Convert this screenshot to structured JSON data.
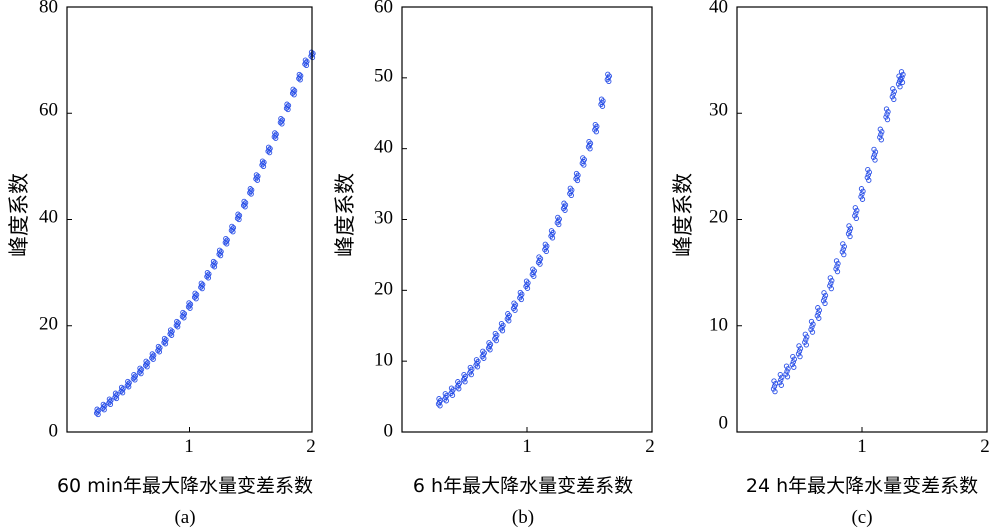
{
  "chart_data": [
    {
      "type": "scatter",
      "panel_label": "(a)",
      "xlabel": "60 min年最大降水量变差系数",
      "ylabel": "峰度系数",
      "xlim": [
        0,
        2
      ],
      "ylim": [
        0,
        80
      ],
      "xticks": [
        "1",
        "2"
      ],
      "yticks": [
        "0",
        "20",
        "40",
        "60",
        "80"
      ],
      "color": "#2a50e8",
      "x": [
        0.25,
        0.3,
        0.35,
        0.4,
        0.45,
        0.5,
        0.55,
        0.6,
        0.65,
        0.7,
        0.75,
        0.8,
        0.85,
        0.9,
        0.95,
        1.0,
        1.05,
        1.1,
        1.15,
        1.2,
        1.25,
        1.3,
        1.35,
        1.4,
        1.45,
        1.5,
        1.55,
        1.6,
        1.65,
        1.7,
        1.75,
        1.8,
        1.85,
        1.9,
        1.95,
        2.0
      ],
      "y": [
        3.8,
        4.7,
        5.7,
        6.8,
        7.9,
        9.0,
        10.3,
        11.5,
        12.8,
        14.2,
        15.6,
        17.1,
        18.7,
        20.3,
        22.0,
        23.8,
        25.6,
        27.5,
        29.5,
        31.6,
        33.7,
        35.9,
        38.2,
        40.5,
        42.9,
        45.3,
        47.9,
        50.5,
        53.1,
        55.8,
        58.5,
        61.2,
        64.0,
        66.8,
        69.5,
        71.0
      ]
    },
    {
      "type": "scatter",
      "panel_label": "(b)",
      "xlabel": "6 h年最大降水量变差系数",
      "ylabel": "峰度系数",
      "xlim": [
        0,
        2
      ],
      "ylim": [
        0,
        60
      ],
      "xticks": [
        "1",
        "2"
      ],
      "yticks": [
        "0",
        "10",
        "20",
        "30",
        "40",
        "50",
        "60"
      ],
      "color": "#2a50e8",
      "x": [
        0.3,
        0.35,
        0.4,
        0.45,
        0.5,
        0.55,
        0.6,
        0.65,
        0.7,
        0.75,
        0.8,
        0.85,
        0.9,
        0.95,
        1.0,
        1.05,
        1.1,
        1.15,
        1.2,
        1.25,
        1.3,
        1.35,
        1.4,
        1.45,
        1.5,
        1.55,
        1.6,
        1.65
      ],
      "y": [
        4.2,
        4.9,
        5.7,
        6.6,
        7.6,
        8.6,
        9.7,
        10.9,
        12.1,
        13.4,
        14.8,
        16.2,
        17.7,
        19.2,
        20.8,
        22.5,
        24.2,
        26.0,
        27.9,
        29.8,
        31.8,
        33.9,
        36.0,
        38.2,
        40.5,
        42.9,
        46.5,
        50.0
      ]
    },
    {
      "type": "scatter",
      "panel_label": "(c)",
      "xlabel": "24 h年最大降水量变差系数",
      "ylabel": "峰度系数",
      "xlim": [
        0,
        2
      ],
      "ylim": [
        0,
        40
      ],
      "xticks": [
        "1",
        "2"
      ],
      "yticks": [
        "0",
        "10",
        "20",
        "30",
        "40"
      ],
      "color": "#2a50e8",
      "x": [
        0.3,
        0.35,
        0.4,
        0.45,
        0.5,
        0.55,
        0.6,
        0.65,
        0.7,
        0.75,
        0.8,
        0.85,
        0.9,
        0.95,
        1.0,
        1.05,
        1.1,
        1.15,
        1.2,
        1.25,
        1.3,
        1.32
      ],
      "y": [
        4.3,
        4.9,
        5.7,
        6.6,
        7.6,
        8.7,
        9.9,
        11.2,
        12.6,
        14.0,
        15.6,
        17.2,
        18.9,
        20.6,
        22.4,
        24.2,
        26.1,
        28.0,
        29.9,
        31.8,
        33.0,
        33.4
      ]
    }
  ]
}
